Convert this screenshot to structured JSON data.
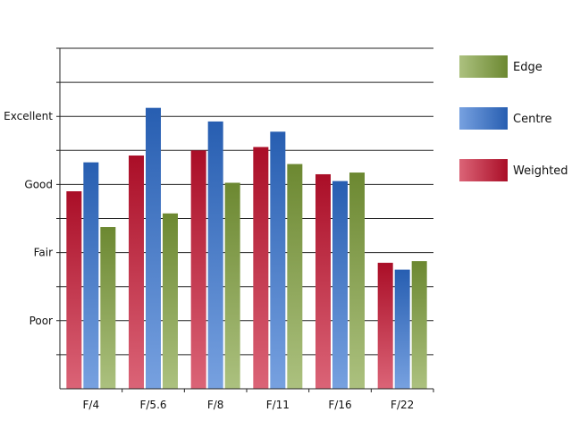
{
  "chart_data": {
    "type": "bar",
    "title": "",
    "xlabel": "",
    "ylabel": "",
    "categories": [
      "F/4",
      "F/5.6",
      "F/8",
      "F/11",
      "F/16",
      "F/22"
    ],
    "y_ticks": [
      {
        "label": "Poor",
        "value": 2
      },
      {
        "label": "Fair",
        "value": 4
      },
      {
        "label": "Good",
        "value": 6
      },
      {
        "label": "Excellent",
        "value": 8
      }
    ],
    "ylim": [
      0,
      10
    ],
    "grid": true,
    "legend_position": "right",
    "series": [
      {
        "name": "Weighted",
        "color": "#c8102e",
        "values": [
          5.8,
          6.85,
          7.0,
          7.1,
          6.3,
          3.7
        ]
      },
      {
        "name": "Centre",
        "color": "#2e6fd0",
        "values": [
          6.65,
          8.25,
          7.85,
          7.55,
          6.1,
          3.5
        ]
      },
      {
        "name": "Edge",
        "color": "#7fa03a",
        "values": [
          4.75,
          5.15,
          6.05,
          6.6,
          6.35,
          3.75
        ]
      }
    ],
    "legend_order": [
      "Edge",
      "Centre",
      "Weighted"
    ]
  }
}
